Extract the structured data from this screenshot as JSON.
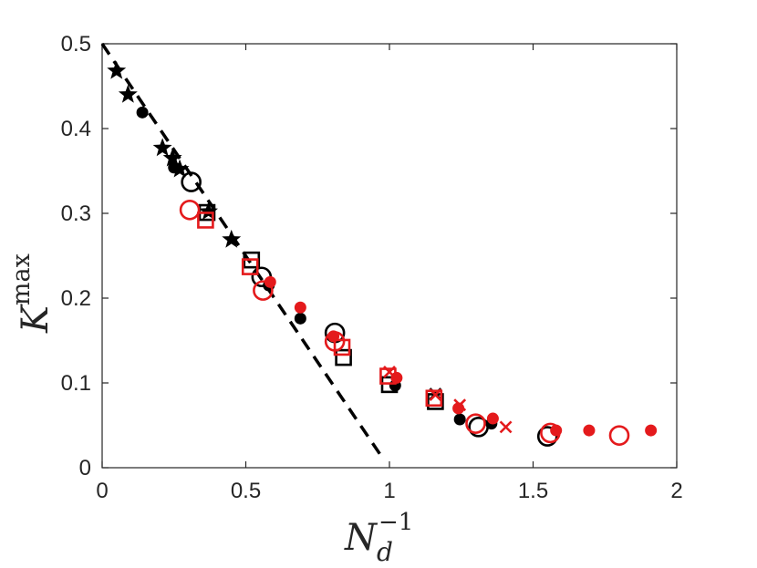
{
  "chart_data": {
    "type": "scatter",
    "title": "",
    "xlabel": {
      "base": "N",
      "sub": "d",
      "sup": "−1"
    },
    "ylabel": {
      "base": "K",
      "sup": "max"
    },
    "xlim": [
      0,
      2
    ],
    "ylim": [
      0,
      0.5
    ],
    "x_ticks": [
      "0",
      "0.5",
      "1",
      "1.5",
      "2"
    ],
    "y_ticks": [
      "0",
      "0.1",
      "0.2",
      "0.3",
      "0.4",
      "0.5"
    ],
    "x_tick_values": [
      0,
      0.5,
      1,
      1.5,
      2
    ],
    "y_tick_values": [
      0,
      0.1,
      0.2,
      0.3,
      0.4,
      0.5
    ],
    "grid": false,
    "colors": {
      "black": "#000000",
      "red": "#e41a1c",
      "axis": "#262626"
    },
    "series": [
      {
        "marker": "line-dashed",
        "color": "black",
        "points": [
          [
            0,
            0.5
          ],
          [
            0.975,
            0.012
          ]
        ]
      },
      {
        "marker": "star",
        "color": "black",
        "points": [
          [
            0.05,
            0.468
          ],
          [
            0.09,
            0.44
          ],
          [
            0.21,
            0.377
          ],
          [
            0.245,
            0.365
          ],
          [
            0.27,
            0.352
          ],
          [
            0.37,
            0.302
          ],
          [
            0.45,
            0.269
          ]
        ]
      },
      {
        "marker": "dot",
        "color": "black",
        "points": [
          [
            0.14,
            0.419
          ],
          [
            0.25,
            0.354
          ],
          [
            0.58,
            0.215
          ],
          [
            0.69,
            0.176
          ],
          [
            1.02,
            0.097
          ],
          [
            1.245,
            0.057
          ],
          [
            1.355,
            0.052
          ]
        ]
      },
      {
        "marker": "circle",
        "color": "black",
        "points": [
          [
            0.31,
            0.337
          ],
          [
            0.555,
            0.225
          ],
          [
            0.81,
            0.159
          ],
          [
            1.31,
            0.048
          ],
          [
            1.55,
            0.037
          ]
        ]
      },
      {
        "marker": "square",
        "color": "black",
        "points": [
          [
            0.365,
            0.301
          ],
          [
            0.52,
            0.245
          ],
          [
            0.84,
            0.13
          ],
          [
            1.0,
            0.098
          ],
          [
            1.16,
            0.078
          ]
        ]
      },
      {
        "marker": "cross",
        "color": "black",
        "points": [
          [
            1.16,
            0.087
          ]
        ]
      },
      {
        "marker": "circle",
        "color": "red",
        "points": [
          [
            0.305,
            0.304
          ],
          [
            0.56,
            0.209
          ],
          [
            0.81,
            0.149
          ],
          [
            1.3,
            0.052
          ],
          [
            1.56,
            0.041
          ],
          [
            1.8,
            0.038
          ]
        ]
      },
      {
        "marker": "dot",
        "color": "red",
        "points": [
          [
            0.585,
            0.219
          ],
          [
            0.69,
            0.189
          ],
          [
            0.805,
            0.155
          ],
          [
            1.025,
            0.106
          ],
          [
            1.24,
            0.07
          ],
          [
            1.36,
            0.058
          ],
          [
            1.58,
            0.044
          ],
          [
            1.695,
            0.044
          ],
          [
            1.91,
            0.044
          ]
        ]
      },
      {
        "marker": "square",
        "color": "red",
        "points": [
          [
            0.36,
            0.292
          ],
          [
            0.515,
            0.237
          ],
          [
            0.835,
            0.142
          ],
          [
            0.995,
            0.108
          ],
          [
            1.155,
            0.082
          ]
        ]
      },
      {
        "marker": "cross",
        "color": "red",
        "points": [
          [
            1.0,
            0.113
          ],
          [
            1.16,
            0.086
          ],
          [
            1.245,
            0.074
          ],
          [
            1.405,
            0.048
          ]
        ]
      }
    ]
  }
}
